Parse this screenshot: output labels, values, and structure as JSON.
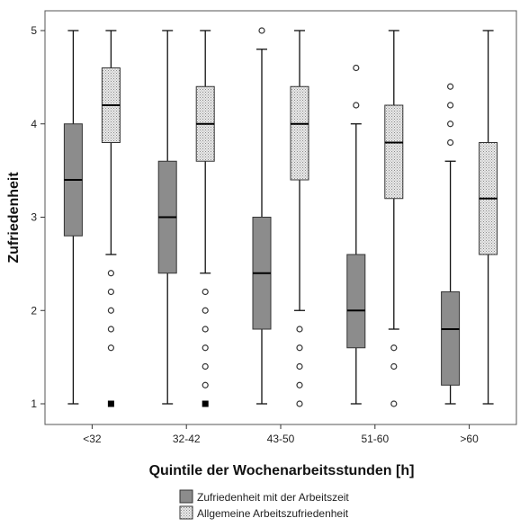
{
  "chart_data": {
    "type": "box",
    "xlabel": "Quintile der Wochenarbeitsstunden [h]",
    "ylabel": "Zufriedenheit",
    "ylim": [
      0.85,
      5.2
    ],
    "yticks": [
      1,
      2,
      3,
      4,
      5
    ],
    "categories": [
      "<32",
      "32-42",
      "43-50",
      "51-60",
      ">60"
    ],
    "legend_position": "bottom",
    "series": [
      {
        "name": "Zufriedenheit mit der Arbeitszeit",
        "fill": "#8c8c8c",
        "pattern": "solid",
        "boxes": [
          {
            "whisker_low": 1.0,
            "q1": 2.8,
            "median": 3.4,
            "q3": 4.0,
            "whisker_high": 5.0,
            "outliers": [],
            "extremes": []
          },
          {
            "whisker_low": 1.0,
            "q1": 2.4,
            "median": 3.0,
            "q3": 3.6,
            "whisker_high": 5.0,
            "outliers": [],
            "extremes": []
          },
          {
            "whisker_low": 1.0,
            "q1": 1.8,
            "median": 2.4,
            "q3": 3.0,
            "whisker_high": 4.8,
            "outliers": [
              5.0
            ],
            "extremes": []
          },
          {
            "whisker_low": 1.0,
            "q1": 1.6,
            "median": 2.0,
            "q3": 2.6,
            "whisker_high": 4.0,
            "outliers": [
              4.2,
              4.6
            ],
            "extremes": []
          },
          {
            "whisker_low": 1.0,
            "q1": 1.2,
            "median": 1.8,
            "q3": 2.2,
            "whisker_high": 3.6,
            "outliers": [
              3.8,
              4.0,
              4.2,
              4.4
            ],
            "extremes": []
          }
        ]
      },
      {
        "name": "Allgemeine Arbeitszufriedenheit",
        "fill": "#dcdcdc",
        "pattern": "dotted",
        "boxes": [
          {
            "whisker_low": 2.6,
            "q1": 3.8,
            "median": 4.2,
            "q3": 4.6,
            "whisker_high": 5.0,
            "outliers": [
              1.6,
              1.8,
              2.0,
              2.2,
              2.4
            ],
            "extremes": [
              1.0
            ]
          },
          {
            "whisker_low": 2.4,
            "q1": 3.6,
            "median": 4.0,
            "q3": 4.4,
            "whisker_high": 5.0,
            "outliers": [
              1.2,
              1.4,
              1.6,
              1.8,
              2.0,
              2.2
            ],
            "extremes": [
              1.0
            ]
          },
          {
            "whisker_low": 2.0,
            "q1": 3.4,
            "median": 4.0,
            "q3": 4.4,
            "whisker_high": 5.0,
            "outliers": [
              1.0,
              1.2,
              1.4,
              1.6,
              1.8
            ],
            "extremes": []
          },
          {
            "whisker_low": 1.8,
            "q1": 3.2,
            "median": 3.8,
            "q3": 4.2,
            "whisker_high": 5.0,
            "outliers": [
              1.0,
              1.4,
              1.6
            ],
            "extremes": []
          },
          {
            "whisker_low": 1.0,
            "q1": 2.6,
            "median": 3.2,
            "q3": 3.8,
            "whisker_high": 5.0,
            "outliers": [],
            "extremes": []
          }
        ]
      }
    ]
  }
}
